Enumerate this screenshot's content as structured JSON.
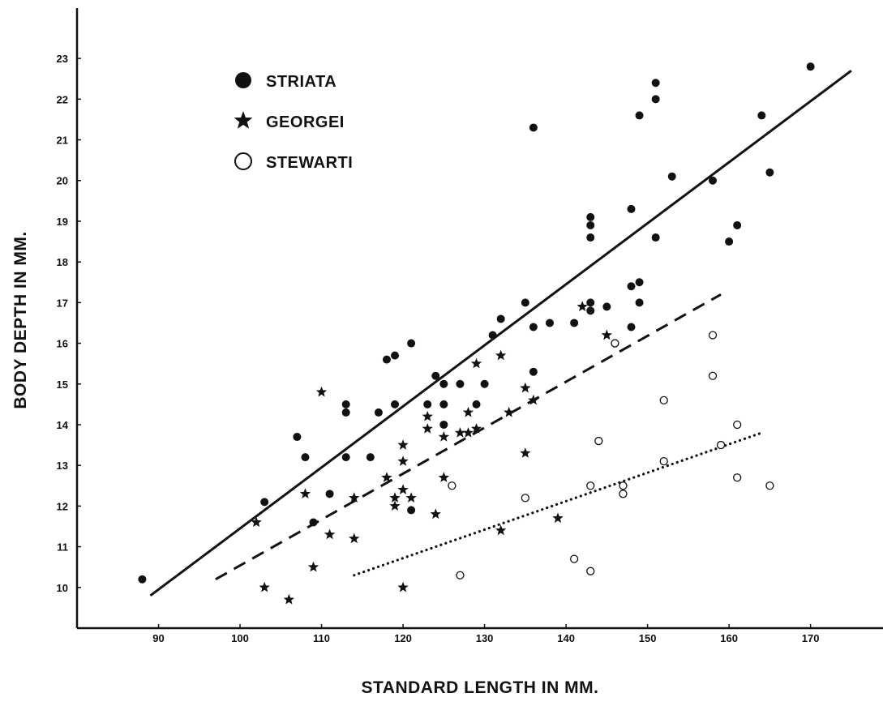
{
  "chart_data": {
    "type": "scatter",
    "xlabel": "STANDARD LENGTH IN MM.",
    "ylabel": "BODY DEPTH IN MM.",
    "xlim": [
      80,
      177
    ],
    "ylim": [
      9,
      23.6
    ],
    "xticks": [
      90,
      100,
      110,
      120,
      130,
      140,
      150,
      160,
      170
    ],
    "yticks": [
      10,
      11,
      12,
      13,
      14,
      15,
      16,
      17,
      18,
      19,
      20,
      21,
      22,
      23
    ],
    "grid": false,
    "legend_position": "top-left",
    "series": [
      {
        "name": "STRIATA",
        "marker": "filled-circle",
        "line_style": "solid",
        "fit_line": [
          [
            89,
            9.8
          ],
          [
            175,
            22.7
          ]
        ],
        "points": [
          [
            88,
            10.2
          ],
          [
            103,
            12.1
          ],
          [
            107,
            13.7
          ],
          [
            108,
            13.2
          ],
          [
            109,
            11.6
          ],
          [
            111,
            12.3
          ],
          [
            113,
            14.5
          ],
          [
            113,
            14.3
          ],
          [
            113,
            13.2
          ],
          [
            116,
            13.2
          ],
          [
            117,
            14.3
          ],
          [
            118,
            15.6
          ],
          [
            119,
            15.7
          ],
          [
            119,
            14.5
          ],
          [
            121,
            16.0
          ],
          [
            121,
            11.9
          ],
          [
            123,
            14.5
          ],
          [
            124,
            15.2
          ],
          [
            125,
            15.0
          ],
          [
            125,
            14.5
          ],
          [
            125,
            14.0
          ],
          [
            127,
            15.0
          ],
          [
            129,
            14.5
          ],
          [
            130,
            15.0
          ],
          [
            131,
            16.2
          ],
          [
            132,
            16.6
          ],
          [
            135,
            17.0
          ],
          [
            136,
            21.3
          ],
          [
            136,
            16.4
          ],
          [
            136,
            15.3
          ],
          [
            138,
            16.5
          ],
          [
            141,
            16.5
          ],
          [
            143,
            19.1
          ],
          [
            143,
            18.9
          ],
          [
            143,
            18.6
          ],
          [
            143,
            17.0
          ],
          [
            143,
            16.8
          ],
          [
            145,
            16.9
          ],
          [
            148,
            19.3
          ],
          [
            148,
            17.4
          ],
          [
            148,
            16.4
          ],
          [
            149,
            21.6
          ],
          [
            149,
            17.5
          ],
          [
            149,
            17.0
          ],
          [
            151,
            22.4
          ],
          [
            151,
            22.0
          ],
          [
            151,
            18.6
          ],
          [
            153,
            20.1
          ],
          [
            158,
            20.0
          ],
          [
            160,
            18.5
          ],
          [
            161,
            18.9
          ],
          [
            164,
            21.6
          ],
          [
            165,
            20.2
          ],
          [
            170,
            22.8
          ]
        ]
      },
      {
        "name": "GEORGEI",
        "marker": "filled-star",
        "line_style": "dashed",
        "fit_line": [
          [
            97,
            10.2
          ],
          [
            159,
            17.2
          ]
        ],
        "points": [
          [
            102,
            11.6
          ],
          [
            103,
            10.0
          ],
          [
            106,
            9.7
          ],
          [
            108,
            12.3
          ],
          [
            109,
            10.5
          ],
          [
            110,
            14.8
          ],
          [
            111,
            11.3
          ],
          [
            114,
            12.2
          ],
          [
            114,
            11.2
          ],
          [
            118,
            12.7
          ],
          [
            119,
            12.2
          ],
          [
            119,
            12.0
          ],
          [
            120,
            13.5
          ],
          [
            120,
            13.1
          ],
          [
            120,
            12.4
          ],
          [
            120,
            10.0
          ],
          [
            121,
            12.2
          ],
          [
            123,
            14.2
          ],
          [
            123,
            13.9
          ],
          [
            124,
            11.8
          ],
          [
            125,
            13.7
          ],
          [
            125,
            12.7
          ],
          [
            127,
            13.8
          ],
          [
            128,
            14.3
          ],
          [
            128,
            13.8
          ],
          [
            129,
            15.5
          ],
          [
            129,
            13.9
          ],
          [
            132,
            15.7
          ],
          [
            132,
            11.4
          ],
          [
            133,
            14.3
          ],
          [
            135,
            14.9
          ],
          [
            135,
            13.3
          ],
          [
            136,
            14.6
          ],
          [
            139,
            11.7
          ],
          [
            142,
            16.9
          ],
          [
            145,
            16.2
          ]
        ]
      },
      {
        "name": "STEWARTI",
        "marker": "open-circle",
        "line_style": "dotted",
        "fit_line": [
          [
            114,
            10.3
          ],
          [
            164,
            13.8
          ]
        ],
        "points": [
          [
            126,
            12.5
          ],
          [
            127,
            10.3
          ],
          [
            135,
            12.2
          ],
          [
            141,
            10.7
          ],
          [
            143,
            12.5
          ],
          [
            143,
            10.4
          ],
          [
            144,
            13.6
          ],
          [
            146,
            16.0
          ],
          [
            147,
            12.5
          ],
          [
            147,
            12.3
          ],
          [
            152,
            14.6
          ],
          [
            152,
            13.1
          ],
          [
            158,
            16.2
          ],
          [
            158,
            15.2
          ],
          [
            159,
            13.5
          ],
          [
            161,
            14.0
          ],
          [
            161,
            12.7
          ],
          [
            165,
            12.5
          ]
        ]
      }
    ]
  }
}
